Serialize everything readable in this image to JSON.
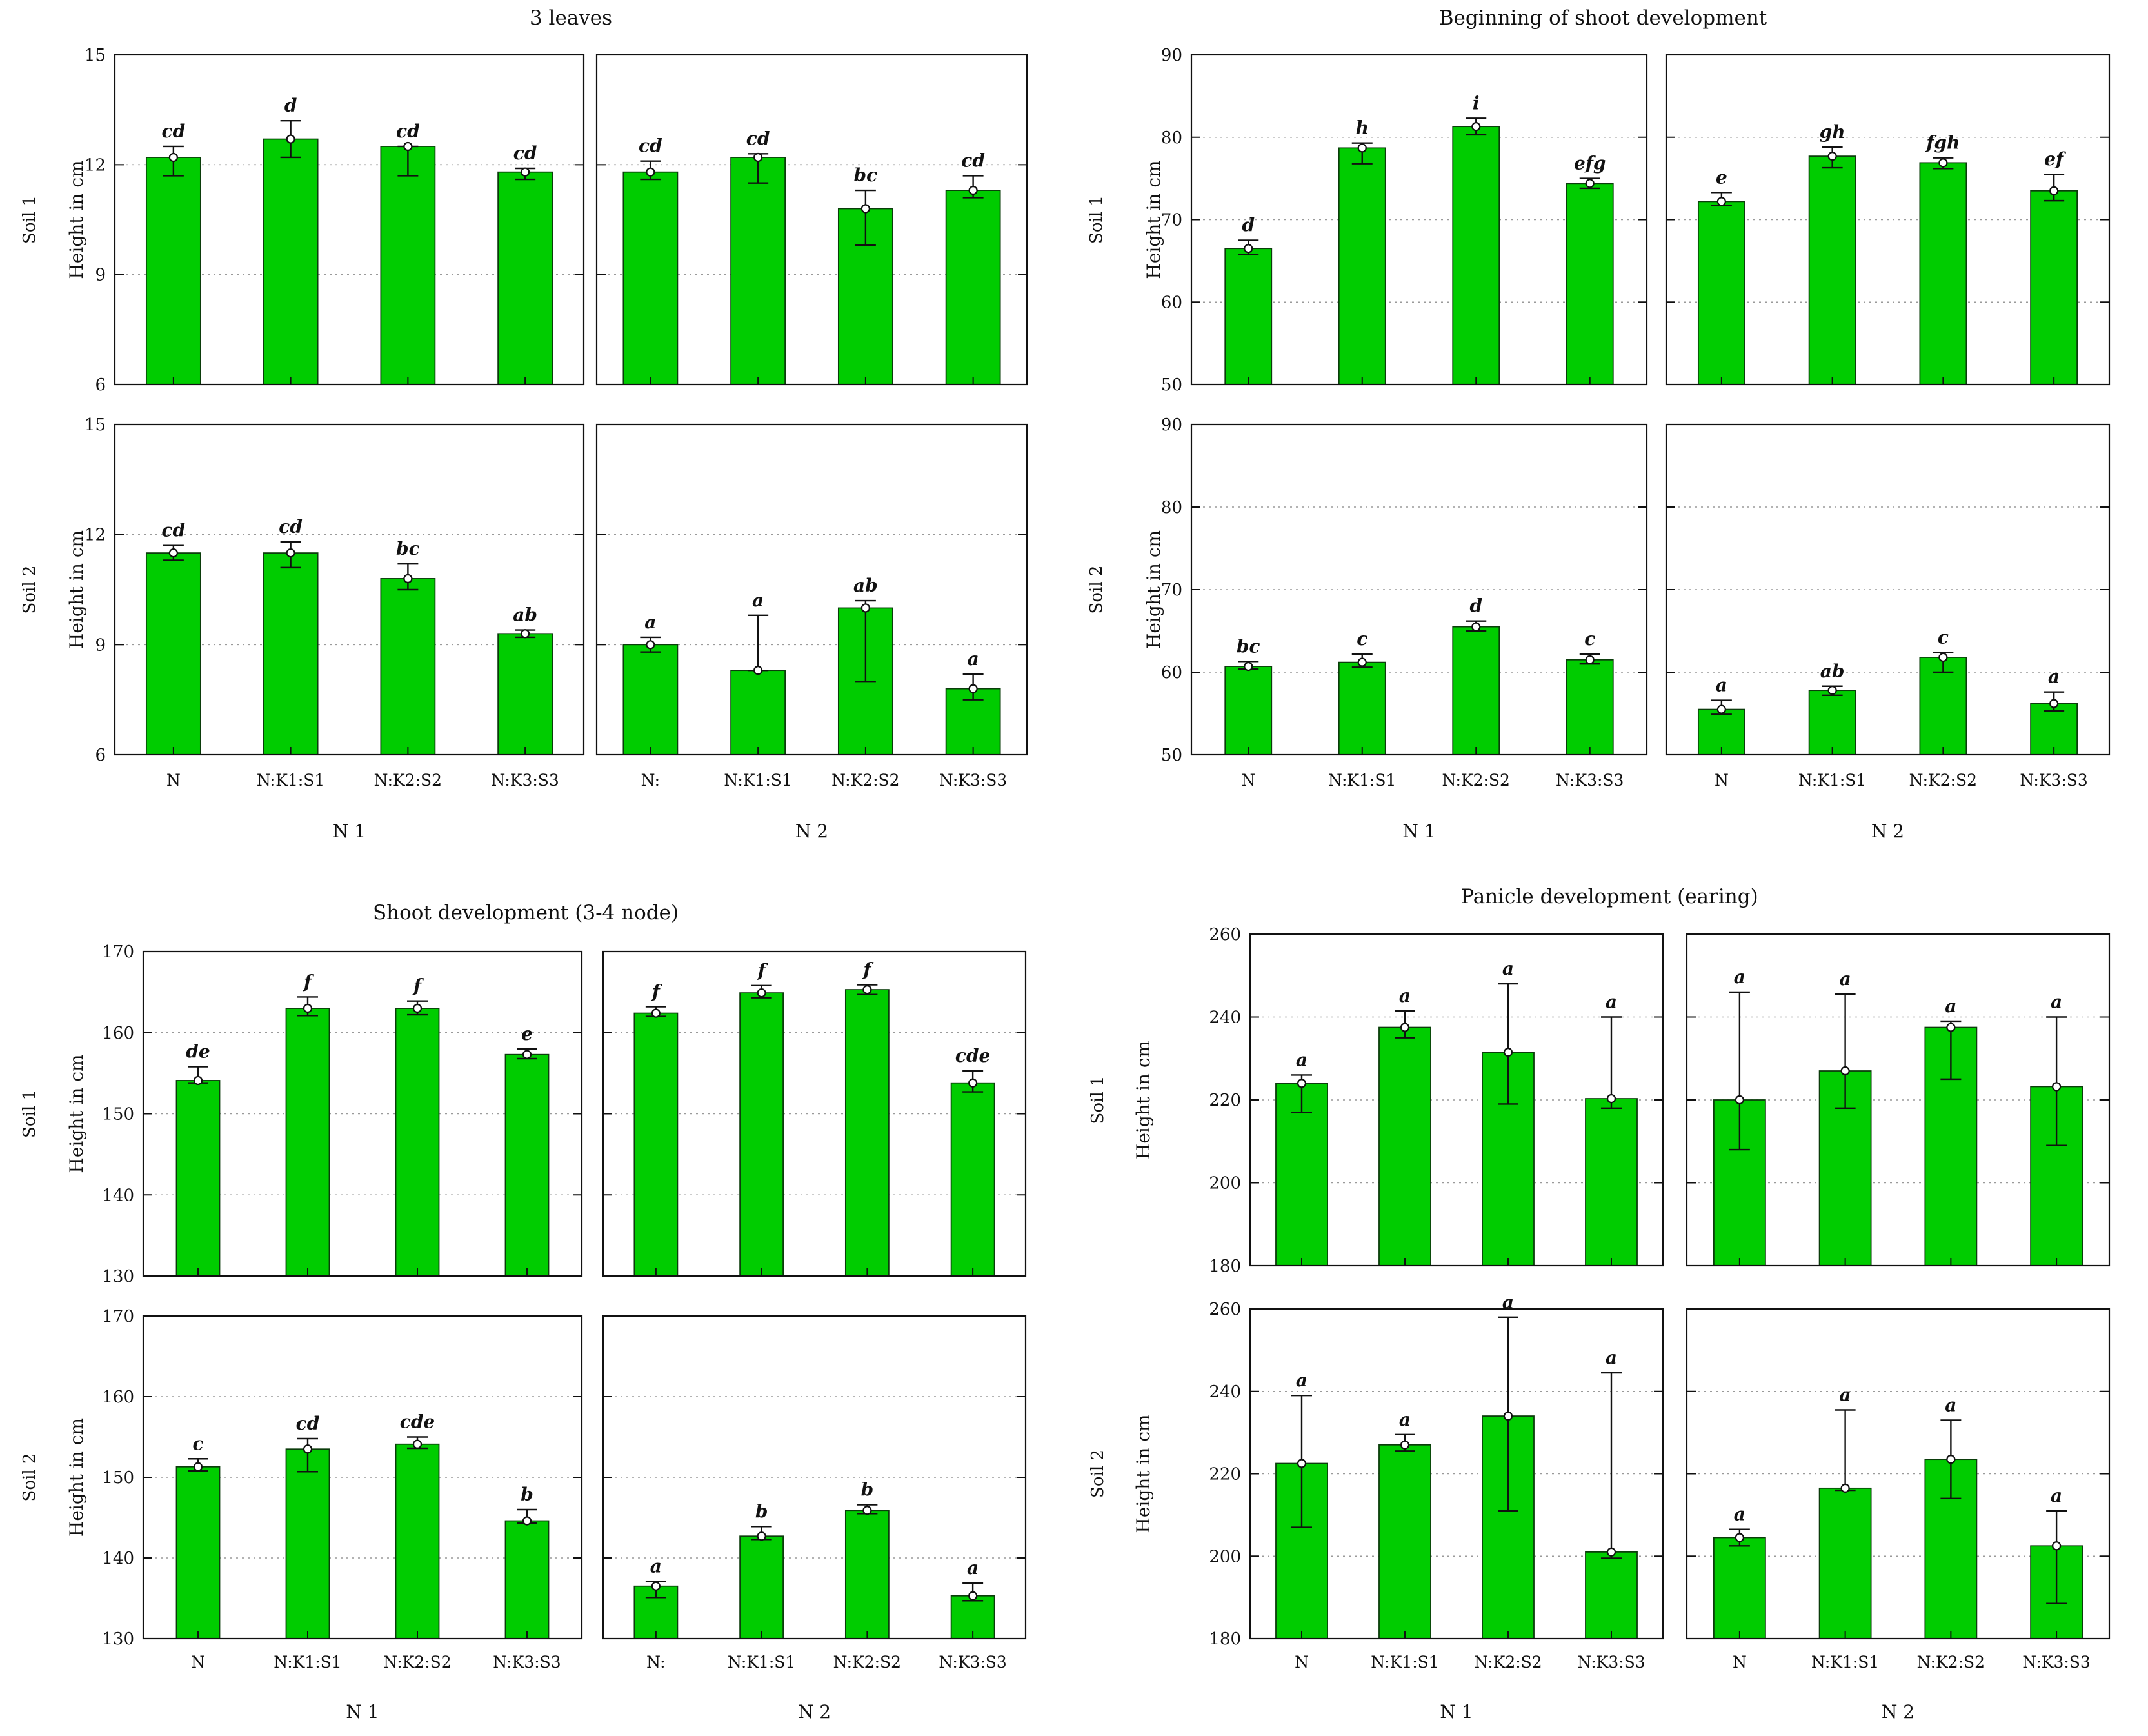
{
  "chart_data": [
    {
      "type": "bar",
      "title": "3 leaves",
      "ylabel": "Height in cm",
      "ylim": [
        6,
        15
      ],
      "yticks": [
        6,
        9,
        12,
        15
      ],
      "bar_color": "#00cc00",
      "group_labels": [
        "N 1",
        "N 2"
      ],
      "row_labels": [
        "Soil 1",
        "Soil 2"
      ],
      "categories": [
        [
          "N",
          "N:K1:S1",
          "N:K2:S2",
          "N:K3:S3"
        ],
        [
          "N:",
          "N:K1:S1",
          "N:K2:S2",
          "N:K3:S3"
        ]
      ],
      "panels": [
        {
          "row": 0,
          "col": 0,
          "values": [
            12.2,
            12.7,
            12.5,
            11.8
          ],
          "lower": [
            11.7,
            12.2,
            11.7,
            11.6
          ],
          "upper": [
            12.5,
            13.2,
            12.5,
            11.9
          ],
          "letters": [
            "cd",
            "d",
            "cd",
            "cd"
          ]
        },
        {
          "row": 0,
          "col": 1,
          "values": [
            11.8,
            12.2,
            10.8,
            11.3
          ],
          "lower": [
            11.6,
            11.5,
            9.8,
            11.1
          ],
          "upper": [
            12.1,
            12.3,
            11.3,
            11.7
          ],
          "letters": [
            "cd",
            "cd",
            "bc",
            "cd"
          ]
        },
        {
          "row": 1,
          "col": 0,
          "values": [
            11.5,
            11.5,
            10.8,
            9.3
          ],
          "lower": [
            11.3,
            11.1,
            10.5,
            9.2
          ],
          "upper": [
            11.7,
            11.8,
            11.2,
            9.4
          ],
          "letters": [
            "cd",
            "cd",
            "bc",
            "ab"
          ]
        },
        {
          "row": 1,
          "col": 1,
          "values": [
            9.0,
            8.3,
            10.0,
            7.8
          ],
          "lower": [
            8.8,
            8.3,
            8.0,
            7.5
          ],
          "upper": [
            9.2,
            9.8,
            10.2,
            8.2
          ],
          "letters": [
            "a",
            "a",
            "ab",
            "a"
          ]
        }
      ]
    },
    {
      "type": "bar",
      "title": "Beginning of shoot development",
      "ylabel": "Height in cm",
      "ylim": [
        50,
        90
      ],
      "yticks": [
        50,
        60,
        70,
        80,
        90
      ],
      "bar_color": "#00cc00",
      "group_labels": [
        "N 1",
        "N 2"
      ],
      "row_labels": [
        "Soil 1",
        "Soil 2"
      ],
      "categories": [
        [
          "N",
          "N:K1:S1",
          "N:K2:S2",
          "N:K3:S3"
        ],
        [
          "N",
          "N:K1:S1",
          "N:K2:S2",
          "N:K3:S3"
        ]
      ],
      "panels": [
        {
          "row": 0,
          "col": 0,
          "values": [
            66.5,
            78.7,
            81.3,
            74.4
          ],
          "lower": [
            65.8,
            76.8,
            80.3,
            73.8
          ],
          "upper": [
            67.5,
            79.3,
            82.3,
            75.0
          ],
          "letters": [
            "d",
            "h",
            "i",
            "efg"
          ]
        },
        {
          "row": 0,
          "col": 1,
          "values": [
            72.2,
            77.7,
            76.9,
            73.5
          ],
          "lower": [
            71.7,
            76.3,
            76.2,
            72.3
          ],
          "upper": [
            73.3,
            78.8,
            77.5,
            75.5
          ],
          "letters": [
            "e",
            "gh",
            "fgh",
            "ef"
          ]
        },
        {
          "row": 1,
          "col": 0,
          "values": [
            60.7,
            61.2,
            65.5,
            61.5
          ],
          "lower": [
            60.4,
            60.6,
            65.0,
            61.0
          ],
          "upper": [
            61.3,
            62.2,
            66.2,
            62.2
          ],
          "letters": [
            "bc",
            "c",
            "d",
            "c"
          ]
        },
        {
          "row": 1,
          "col": 1,
          "values": [
            55.5,
            57.8,
            61.8,
            56.2
          ],
          "lower": [
            54.9,
            57.2,
            60.0,
            55.3
          ],
          "upper": [
            56.6,
            58.3,
            62.4,
            57.6
          ],
          "letters": [
            "a",
            "ab",
            "c",
            "a"
          ]
        }
      ]
    },
    {
      "type": "bar",
      "title": "Shoot development (3-4 node)",
      "ylabel": "Height in cm",
      "ylim": [
        130,
        170
      ],
      "yticks": [
        130,
        140,
        150,
        160,
        170
      ],
      "bar_color": "#00cc00",
      "group_labels": [
        "N 1",
        "N 2"
      ],
      "row_labels": [
        "Soil 1",
        "Soil 2"
      ],
      "categories": [
        [
          "N",
          "N:K1:S1",
          "N:K2:S2",
          "N:K3:S3"
        ],
        [
          "N:",
          "N:K1:S1",
          "N:K2:S2",
          "N:K3:S3"
        ]
      ],
      "panels": [
        {
          "row": 0,
          "col": 0,
          "values": [
            154.1,
            163.0,
            163.0,
            157.3
          ],
          "lower": [
            153.8,
            162.1,
            162.2,
            156.8
          ],
          "upper": [
            155.8,
            164.4,
            163.9,
            158.0
          ],
          "letters": [
            "de",
            "f",
            "f",
            "e"
          ]
        },
        {
          "row": 0,
          "col": 1,
          "values": [
            162.4,
            164.9,
            165.3,
            153.8
          ],
          "lower": [
            162.0,
            164.3,
            164.7,
            152.7
          ],
          "upper": [
            163.2,
            165.8,
            165.9,
            155.3
          ],
          "letters": [
            "f",
            "f",
            "f",
            "cde"
          ]
        },
        {
          "row": 1,
          "col": 0,
          "values": [
            151.3,
            153.5,
            154.1,
            144.6
          ],
          "lower": [
            150.8,
            150.7,
            153.6,
            144.3
          ],
          "upper": [
            152.3,
            154.8,
            155.0,
            146.0
          ],
          "letters": [
            "c",
            "cd",
            "cde",
            "b"
          ]
        },
        {
          "row": 1,
          "col": 1,
          "values": [
            136.5,
            142.7,
            145.9,
            135.3
          ],
          "lower": [
            135.1,
            142.3,
            145.5,
            134.7
          ],
          "upper": [
            137.1,
            143.9,
            146.6,
            136.9
          ],
          "letters": [
            "a",
            "b",
            "b",
            "a"
          ]
        }
      ]
    },
    {
      "type": "bar",
      "title": "Panicle development (earing)",
      "ylabel": "Height in cm",
      "ylim": [
        180,
        260
      ],
      "yticks": [
        180,
        200,
        220,
        240,
        260
      ],
      "bar_color": "#00cc00",
      "group_labels": [
        "N 1",
        "N 2"
      ],
      "row_labels": [
        "Soil 1",
        "Soil 2"
      ],
      "categories": [
        [
          "N",
          "N:K1:S1",
          "N:K2:S2",
          "N:K3:S3"
        ],
        [
          "N",
          "N:K1:S1",
          "N:K2:S2",
          "N:K3:S3"
        ]
      ],
      "panels": [
        {
          "row": 0,
          "col": 0,
          "values": [
            224,
            237.5,
            231.5,
            220.3
          ],
          "lower": [
            217,
            235,
            219,
            218
          ],
          "upper": [
            226,
            241.5,
            248,
            240
          ],
          "letters": [
            "a",
            "a",
            "a",
            "a"
          ]
        },
        {
          "row": 0,
          "col": 1,
          "values": [
            220,
            227,
            237.5,
            223.2
          ],
          "lower": [
            208,
            218,
            225,
            209
          ],
          "upper": [
            246,
            245.5,
            239,
            240
          ],
          "letters": [
            "a",
            "a",
            "a",
            "a"
          ]
        },
        {
          "row": 1,
          "col": 0,
          "values": [
            222.5,
            227,
            234,
            201
          ],
          "lower": [
            207,
            225.5,
            211,
            199.5
          ],
          "upper": [
            239,
            229.5,
            258,
            244.5
          ],
          "letters": [
            "a",
            "a",
            "a",
            "a"
          ]
        },
        {
          "row": 1,
          "col": 1,
          "values": [
            204.5,
            216.5,
            223.5,
            202.5
          ],
          "lower": [
            202.5,
            216,
            214,
            188.5
          ],
          "upper": [
            206.5,
            235.5,
            233,
            211
          ],
          "letters": [
            "a",
            "a",
            "a",
            "a"
          ]
        }
      ]
    }
  ]
}
